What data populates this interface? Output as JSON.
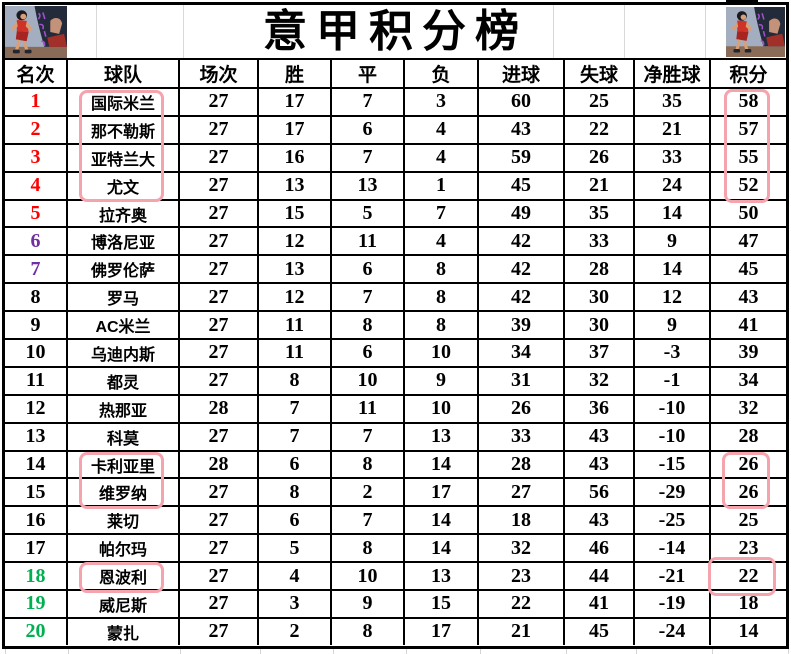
{
  "title": "意甲积分榜",
  "columns": [
    {
      "key": "rank",
      "label": "名次"
    },
    {
      "key": "team",
      "label": "球队"
    },
    {
      "key": "played",
      "label": "场次"
    },
    {
      "key": "win",
      "label": "胜"
    },
    {
      "key": "draw",
      "label": "平"
    },
    {
      "key": "loss",
      "label": "负"
    },
    {
      "key": "gf",
      "label": "进球"
    },
    {
      "key": "ga",
      "label": "失球"
    },
    {
      "key": "gd",
      "label": "净胜球"
    },
    {
      "key": "pts",
      "label": "积分"
    }
  ],
  "rows": [
    {
      "rank": 1,
      "team": "国际米兰",
      "played": 27,
      "win": 17,
      "draw": 7,
      "loss": 3,
      "gf": 60,
      "ga": 25,
      "gd": 35,
      "pts": 58,
      "rank_color": "red"
    },
    {
      "rank": 2,
      "team": "那不勒斯",
      "played": 27,
      "win": 17,
      "draw": 6,
      "loss": 4,
      "gf": 43,
      "ga": 22,
      "gd": 21,
      "pts": 57,
      "rank_color": "red"
    },
    {
      "rank": 3,
      "team": "亚特兰大",
      "played": 27,
      "win": 16,
      "draw": 7,
      "loss": 4,
      "gf": 59,
      "ga": 26,
      "gd": 33,
      "pts": 55,
      "rank_color": "red"
    },
    {
      "rank": 4,
      "team": "尤文",
      "played": 27,
      "win": 13,
      "draw": 13,
      "loss": 1,
      "gf": 45,
      "ga": 21,
      "gd": 24,
      "pts": 52,
      "rank_color": "red"
    },
    {
      "rank": 5,
      "team": "拉齐奥",
      "played": 27,
      "win": 15,
      "draw": 5,
      "loss": 7,
      "gf": 49,
      "ga": 35,
      "gd": 14,
      "pts": 50,
      "rank_color": "red"
    },
    {
      "rank": 6,
      "team": "博洛尼亚",
      "played": 27,
      "win": 12,
      "draw": 11,
      "loss": 4,
      "gf": 42,
      "ga": 33,
      "gd": 9,
      "pts": 47,
      "rank_color": "purple"
    },
    {
      "rank": 7,
      "team": "佛罗伦萨",
      "played": 27,
      "win": 13,
      "draw": 6,
      "loss": 8,
      "gf": 42,
      "ga": 28,
      "gd": 14,
      "pts": 45,
      "rank_color": "purple"
    },
    {
      "rank": 8,
      "team": "罗马",
      "played": 27,
      "win": 12,
      "draw": 7,
      "loss": 8,
      "gf": 42,
      "ga": 30,
      "gd": 12,
      "pts": 43,
      "rank_color": "black"
    },
    {
      "rank": 9,
      "team": "AC米兰",
      "played": 27,
      "win": 11,
      "draw": 8,
      "loss": 8,
      "gf": 39,
      "ga": 30,
      "gd": 9,
      "pts": 41,
      "rank_color": "black"
    },
    {
      "rank": 10,
      "team": "乌迪内斯",
      "played": 27,
      "win": 11,
      "draw": 6,
      "loss": 10,
      "gf": 34,
      "ga": 37,
      "gd": -3,
      "pts": 39,
      "rank_color": "black"
    },
    {
      "rank": 11,
      "team": "都灵",
      "played": 27,
      "win": 8,
      "draw": 10,
      "loss": 9,
      "gf": 31,
      "ga": 32,
      "gd": -1,
      "pts": 34,
      "rank_color": "black"
    },
    {
      "rank": 12,
      "team": "热那亚",
      "played": 28,
      "win": 7,
      "draw": 11,
      "loss": 10,
      "gf": 26,
      "ga": 36,
      "gd": -10,
      "pts": 32,
      "rank_color": "black"
    },
    {
      "rank": 13,
      "team": "科莫",
      "played": 27,
      "win": 7,
      "draw": 7,
      "loss": 13,
      "gf": 33,
      "ga": 43,
      "gd": -10,
      "pts": 28,
      "rank_color": "black"
    },
    {
      "rank": 14,
      "team": "卡利亚里",
      "played": 28,
      "win": 6,
      "draw": 8,
      "loss": 14,
      "gf": 28,
      "ga": 43,
      "gd": -15,
      "pts": 26,
      "rank_color": "black"
    },
    {
      "rank": 15,
      "team": "维罗纳",
      "played": 27,
      "win": 8,
      "draw": 2,
      "loss": 17,
      "gf": 27,
      "ga": 56,
      "gd": -29,
      "pts": 26,
      "rank_color": "black"
    },
    {
      "rank": 16,
      "team": "莱切",
      "played": 27,
      "win": 6,
      "draw": 7,
      "loss": 14,
      "gf": 18,
      "ga": 43,
      "gd": -25,
      "pts": 25,
      "rank_color": "black"
    },
    {
      "rank": 17,
      "team": "帕尔玛",
      "played": 27,
      "win": 5,
      "draw": 8,
      "loss": 14,
      "gf": 32,
      "ga": 46,
      "gd": -14,
      "pts": 23,
      "rank_color": "black"
    },
    {
      "rank": 18,
      "team": "恩波利",
      "played": 27,
      "win": 4,
      "draw": 10,
      "loss": 13,
      "gf": 23,
      "ga": 44,
      "gd": -21,
      "pts": 22,
      "rank_color": "green"
    },
    {
      "rank": 19,
      "team": "威尼斯",
      "played": 27,
      "win": 3,
      "draw": 9,
      "loss": 15,
      "gf": 22,
      "ga": 41,
      "gd": -19,
      "pts": 18,
      "rank_color": "green"
    },
    {
      "rank": 20,
      "team": "蒙扎",
      "played": 27,
      "win": 2,
      "draw": 8,
      "loss": 17,
      "gf": 21,
      "ga": 45,
      "gd": -24,
      "pts": 14,
      "rank_color": "green"
    }
  ],
  "colors": {
    "rank_top5": "#fe0000",
    "rank_6_7": "#7030a0",
    "rank_relegation": "#00b050",
    "grid_line": "#000000",
    "highlight_box": "#f5a3ad"
  },
  "annotations": [
    {
      "name": "highlight-teams-rows-1-4",
      "column": "球队",
      "rows": "1-4",
      "values": [
        "国际米兰",
        "那不勒斯",
        "亚特兰大",
        "尤文"
      ]
    },
    {
      "name": "highlight-points-rows-1-4",
      "column": "积分",
      "rows": "1-4",
      "values": [
        58,
        57,
        55,
        52
      ]
    },
    {
      "name": "highlight-teams-rows-14-15",
      "column": "球队",
      "rows": "14-15",
      "values": [
        "卡利亚里",
        "维罗纳"
      ]
    },
    {
      "name": "highlight-points-rows-14-15",
      "column": "积分",
      "rows": "14-15",
      "values": [
        26,
        26
      ]
    },
    {
      "name": "highlight-team-row-18",
      "column": "球队",
      "rows": "18",
      "values": [
        "恩波利"
      ]
    },
    {
      "name": "highlight-points-row-18",
      "column": "积分",
      "rows": "18",
      "values": [
        22
      ]
    }
  ],
  "artwork": {
    "description": "slam-dunk-basketball-players"
  }
}
